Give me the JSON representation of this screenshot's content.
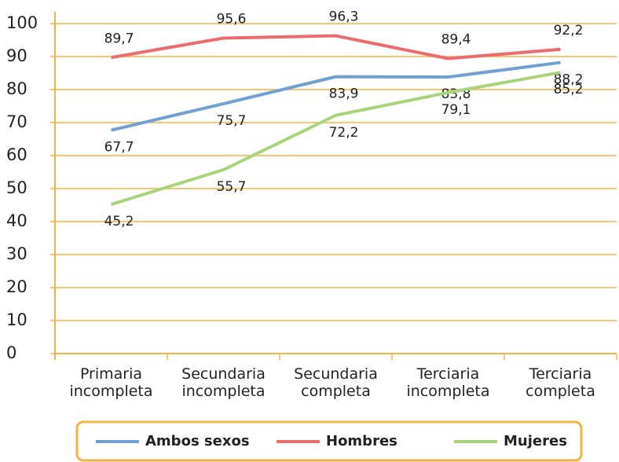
{
  "chart_data": {
    "type": "line",
    "categories": [
      "Primaria incompleta",
      "Secundaria incompleta",
      "Secundaria completa",
      "Terciaria incompleta",
      "Terciaria completa"
    ],
    "series": [
      {
        "name": "Ambos sexos",
        "color": "#6fa0d0",
        "values": [
          67.7,
          75.7,
          83.9,
          83.8,
          88.2
        ],
        "value_labels": [
          "67,7",
          "75,7",
          "83,9",
          "83,8",
          "88,2"
        ]
      },
      {
        "name": "Hombres",
        "color": "#ec6b6f",
        "values": [
          89.7,
          95.6,
          96.3,
          89.4,
          92.2
        ],
        "value_labels": [
          "89,7",
          "95,6",
          "96,3",
          "89,4",
          "92,2"
        ]
      },
      {
        "name": "Mujeres",
        "color": "#a9d37a",
        "values": [
          45.2,
          55.7,
          72.2,
          79.1,
          85.2
        ],
        "value_labels": [
          "45,2",
          "55,7",
          "72,2",
          "79,1",
          "85,2"
        ]
      }
    ],
    "ylim": [
      0,
      100
    ],
    "yticks": [
      0,
      10,
      20,
      30,
      40,
      50,
      60,
      70,
      80,
      90,
      100
    ],
    "grid": true,
    "legend": "bottom"
  }
}
